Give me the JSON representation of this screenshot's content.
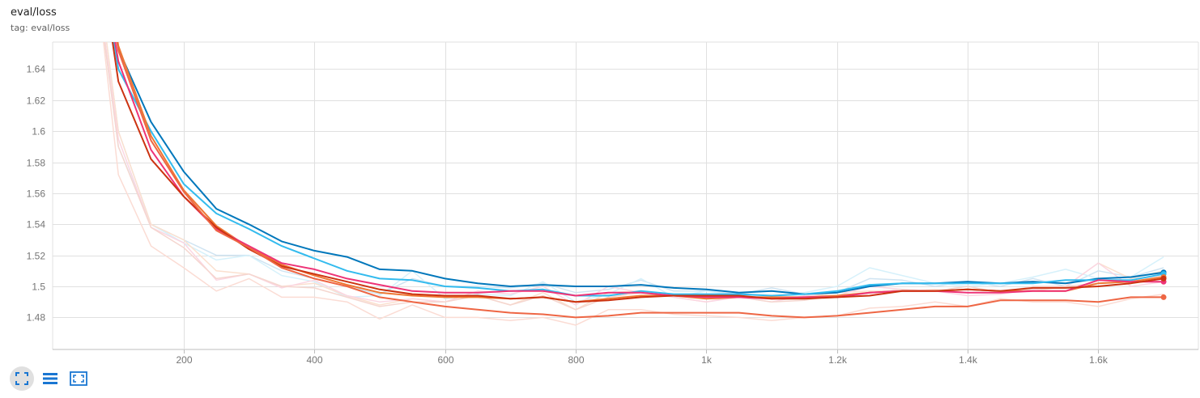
{
  "card": {
    "title": "eval/loss",
    "tag": "tag: eval/loss"
  },
  "toolbar": {
    "buttons": [
      {
        "icon": "fit-domain-icon",
        "active": true
      },
      {
        "icon": "toggle-data-table-icon",
        "active": false
      },
      {
        "icon": "fullscreen-icon",
        "active": false
      }
    ]
  },
  "colors": {
    "tick": "#757575",
    "grid": "#e0e0e0",
    "icon": "#1976d2"
  },
  "chart_data": {
    "type": "line",
    "title": "eval/loss",
    "xlabel": "",
    "ylabel": "",
    "xlim": [
      0,
      1750
    ],
    "ylim": [
      1.46,
      1.655
    ],
    "x_ticks": [
      200,
      400,
      600,
      800,
      1000,
      1200,
      1400,
      1600
    ],
    "x_tick_labels": [
      "200",
      "400",
      "600",
      "800",
      "1k",
      "1.2k",
      "1.4k",
      "1.6k"
    ],
    "y_ticks": [
      1.48,
      1.5,
      1.52,
      1.54,
      1.56,
      1.58,
      1.6,
      1.62,
      1.64
    ],
    "y_tick_labels": [
      "1.48",
      "1.5",
      "1.52",
      "1.54",
      "1.56",
      "1.58",
      "1.6",
      "1.62",
      "1.64"
    ],
    "grid": true,
    "x": [
      50,
      100,
      150,
      200,
      250,
      300,
      350,
      400,
      450,
      500,
      550,
      600,
      650,
      700,
      750,
      800,
      850,
      900,
      950,
      1000,
      1050,
      1100,
      1150,
      1200,
      1250,
      1300,
      1350,
      1400,
      1450,
      1500,
      1550,
      1600,
      1650,
      1700
    ],
    "series": [
      {
        "color": "#0077bb",
        "smoothed": [
          1.78,
          1.653,
          1.606,
          1.574,
          1.55,
          1.54,
          1.529,
          1.523,
          1.519,
          1.511,
          1.51,
          1.505,
          1.502,
          1.5,
          1.501,
          1.5,
          1.5,
          1.501,
          1.499,
          1.498,
          1.496,
          1.497,
          1.495,
          1.496,
          1.5,
          1.502,
          1.502,
          1.503,
          1.502,
          1.503,
          1.502,
          1.505,
          1.506,
          1.509
        ],
        "raw_color": "#cfe4f2",
        "raw": [
          1.76,
          1.6,
          1.54,
          1.53,
          1.52,
          1.52,
          1.51,
          1.505,
          1.5,
          1.495,
          1.505,
          1.5,
          1.5,
          1.499,
          1.502,
          1.496,
          1.498,
          1.504,
          1.497,
          1.497,
          1.495,
          1.499,
          1.495,
          1.496,
          1.505,
          1.504,
          1.5,
          1.503,
          1.5,
          1.505,
          1.5,
          1.51,
          1.506,
          1.512
        ]
      },
      {
        "color": "#33bbee",
        "smoothed": [
          1.77,
          1.64,
          1.6,
          1.566,
          1.547,
          1.537,
          1.526,
          1.518,
          1.51,
          1.505,
          1.504,
          1.5,
          1.499,
          1.497,
          1.498,
          1.494,
          1.494,
          1.497,
          1.495,
          1.495,
          1.495,
          1.494,
          1.495,
          1.497,
          1.501,
          1.502,
          1.502,
          1.502,
          1.502,
          1.502,
          1.504,
          1.504,
          1.504,
          1.508
        ],
        "raw_color": "#d6f1fb",
        "raw": [
          1.75,
          1.59,
          1.54,
          1.528,
          1.517,
          1.52,
          1.507,
          1.503,
          1.493,
          1.494,
          1.51,
          1.492,
          1.495,
          1.494,
          1.503,
          1.49,
          1.495,
          1.505,
          1.493,
          1.497,
          1.494,
          1.493,
          1.496,
          1.5,
          1.512,
          1.507,
          1.502,
          1.5,
          1.502,
          1.506,
          1.511,
          1.505,
          1.506,
          1.519
        ]
      },
      {
        "color": "#ee7733",
        "smoothed": [
          1.78,
          1.655,
          1.597,
          1.562,
          1.539,
          1.525,
          1.514,
          1.507,
          1.501,
          1.496,
          1.494,
          1.493,
          1.493,
          1.492,
          1.493,
          1.49,
          1.492,
          1.494,
          1.494,
          1.492,
          1.493,
          1.493,
          1.493,
          1.494,
          1.496,
          1.497,
          1.497,
          1.498,
          1.497,
          1.497,
          1.497,
          1.502,
          1.503,
          1.506
        ],
        "raw_color": "#fbe0cf",
        "raw": [
          1.76,
          1.6,
          1.54,
          1.53,
          1.51,
          1.508,
          1.5,
          1.502,
          1.494,
          1.488,
          1.492,
          1.49,
          1.494,
          1.488,
          1.496,
          1.485,
          1.496,
          1.497,
          1.493,
          1.49,
          1.494,
          1.492,
          1.493,
          1.496,
          1.497,
          1.497,
          1.498,
          1.496,
          1.496,
          1.497,
          1.5,
          1.515,
          1.505,
          1.51
        ]
      },
      {
        "color": "#ee3377",
        "smoothed": [
          1.77,
          1.645,
          1.588,
          1.558,
          1.537,
          1.526,
          1.515,
          1.511,
          1.505,
          1.501,
          1.497,
          1.496,
          1.496,
          1.497,
          1.497,
          1.494,
          1.496,
          1.496,
          1.494,
          1.493,
          1.493,
          1.492,
          1.493,
          1.493,
          1.496,
          1.497,
          1.497,
          1.496,
          1.496,
          1.497,
          1.497,
          1.504,
          1.503,
          1.503
        ],
        "raw_color": "#fbd6e2",
        "raw": [
          1.75,
          1.595,
          1.538,
          1.528,
          1.504,
          1.508,
          1.499,
          1.504,
          1.494,
          1.49,
          1.492,
          1.49,
          1.497,
          1.495,
          1.5,
          1.488,
          1.5,
          1.496,
          1.493,
          1.49,
          1.493,
          1.49,
          1.494,
          1.494,
          1.5,
          1.498,
          1.497,
          1.494,
          1.495,
          1.498,
          1.5,
          1.515,
          1.5,
          1.503
        ]
      },
      {
        "color": "#cc3311",
        "smoothed": [
          1.775,
          1.632,
          1.582,
          1.558,
          1.538,
          1.524,
          1.513,
          1.508,
          1.503,
          1.498,
          1.495,
          1.494,
          1.494,
          1.492,
          1.493,
          1.49,
          1.491,
          1.493,
          1.494,
          1.494,
          1.494,
          1.492,
          1.492,
          1.493,
          1.494,
          1.497,
          1.497,
          1.498,
          1.497,
          1.499,
          1.499,
          1.5,
          1.502,
          1.505
        ],
        "raw_color": "#f5d6cf",
        "raw": [
          1.75,
          1.59,
          1.538,
          1.525,
          1.505,
          1.508,
          1.5,
          1.499,
          1.493,
          1.487,
          1.49,
          1.49,
          1.494,
          1.488,
          1.494,
          1.485,
          1.493,
          1.496,
          1.494,
          1.492,
          1.493,
          1.49,
          1.491,
          1.494,
          1.496,
          1.498,
          1.497,
          1.5,
          1.496,
          1.5,
          1.5,
          1.502,
          1.503,
          1.507
        ]
      },
      {
        "color": "#ee6644",
        "smoothed": [
          1.78,
          1.652,
          1.594,
          1.561,
          1.536,
          1.525,
          1.512,
          1.505,
          1.5,
          1.493,
          1.49,
          1.487,
          1.485,
          1.483,
          1.482,
          1.48,
          1.481,
          1.483,
          1.483,
          1.483,
          1.483,
          1.481,
          1.48,
          1.481,
          1.483,
          1.485,
          1.487,
          1.487,
          1.491,
          1.491,
          1.491,
          1.49,
          1.493,
          1.493
        ],
        "raw_color": "#fbdcd4",
        "raw": [
          1.76,
          1.572,
          1.526,
          1.512,
          1.497,
          1.505,
          1.493,
          1.493,
          1.49,
          1.479,
          1.488,
          1.48,
          1.48,
          1.478,
          1.48,
          1.475,
          1.485,
          1.485,
          1.482,
          1.481,
          1.48,
          1.478,
          1.48,
          1.481,
          1.486,
          1.487,
          1.49,
          1.487,
          1.492,
          1.49,
          1.49,
          1.487,
          1.492,
          1.495
        ]
      }
    ]
  }
}
